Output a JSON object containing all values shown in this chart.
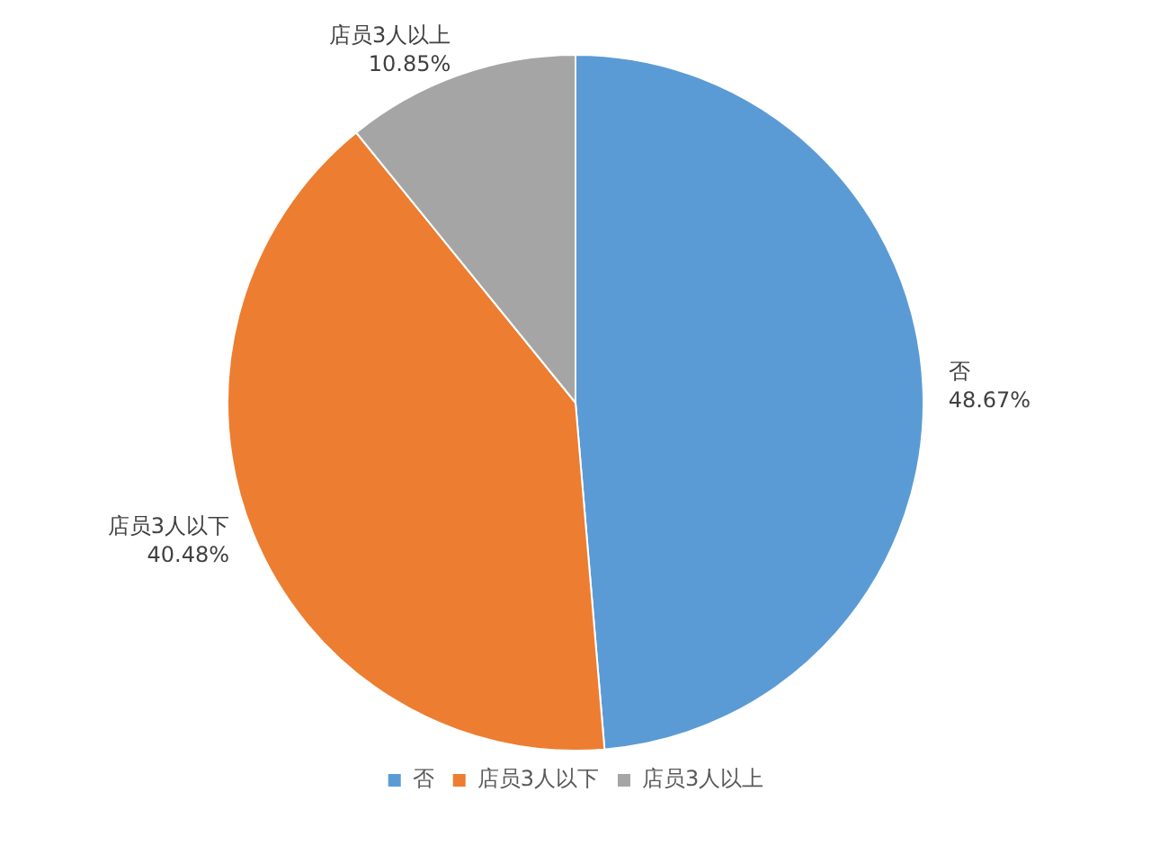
{
  "chart_data": {
    "type": "pie",
    "categories": [
      "否",
      "店员3人以下",
      "店员3人以上"
    ],
    "values": [
      48.67,
      40.48,
      10.85
    ],
    "colors": [
      "#5b9bd5",
      "#ed7d31",
      "#a5a5a5"
    ],
    "value_labels": [
      "48.67%",
      "40.48%",
      "10.85%"
    ],
    "legend": "bottom"
  }
}
